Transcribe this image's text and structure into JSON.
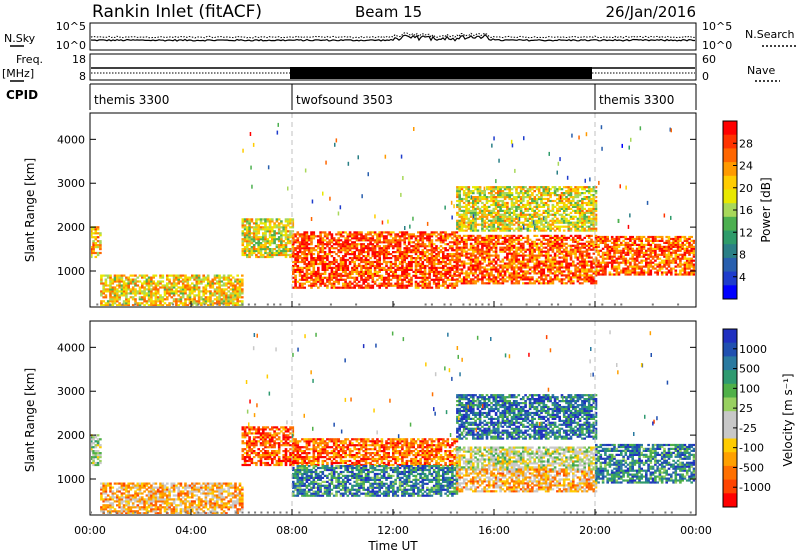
{
  "header": {
    "station": "Rankin Inlet (fitACF)",
    "beam": "Beam 15",
    "date": "26/Jan/2016"
  },
  "strips": {
    "nsky_label": "N.Sky",
    "nsearch_label": "N.Search",
    "left_ticks": [
      "10^5",
      "10^0"
    ],
    "right_ticks": [
      "10^5",
      "10^0"
    ],
    "freq_label": "Freq.",
    "freq_unit": "[MHz]",
    "freq_ticks": [
      "18",
      "8"
    ],
    "nave_label": "Nave",
    "nave_ticks": [
      "60",
      "0"
    ],
    "cpid_label": "CPID",
    "cpid_segments": [
      {
        "name": "themis 3300",
        "start_h": 0,
        "end_h": 8
      },
      {
        "name": "twofsound 3503",
        "start_h": 8,
        "end_h": 20
      },
      {
        "name": "themis 3300",
        "start_h": 20,
        "end_h": 24
      }
    ]
  },
  "chart_data": [
    {
      "type": "heatmap",
      "panel": "power",
      "ylabel": "Slant Range [km]",
      "ylim": [
        180,
        4600
      ],
      "xlim": [
        0,
        24
      ],
      "yticks": [
        1000,
        2000,
        3000,
        4000
      ],
      "colorbar_label": "Power [dB]",
      "colorbar_ticks": [
        "28",
        "24",
        "20",
        "16",
        "12",
        "8",
        "4"
      ],
      "colorbar_colors": [
        "#ff0000",
        "#ff3300",
        "#ff6600",
        "#ff9a00",
        "#ffcc00",
        "#e8e800",
        "#a8d85a",
        "#4cb050",
        "#2e9b6a",
        "#2a7f86",
        "#285fae",
        "#1e3ccc",
        "#0000ff"
      ],
      "regions": [
        {
          "t0": 0.0,
          "t1": 0.4,
          "r0": 1300,
          "r1": 2000,
          "level": 0.7
        },
        {
          "t0": 0.4,
          "t1": 6.0,
          "r0": 200,
          "r1": 900,
          "level": 0.65
        },
        {
          "t0": 6.0,
          "t1": 8.0,
          "r0": 1300,
          "r1": 2200,
          "level": 0.6
        },
        {
          "t0": 8.0,
          "t1": 14.5,
          "r0": 600,
          "r1": 1900,
          "level": 0.9
        },
        {
          "t0": 14.5,
          "t1": 20.0,
          "r0": 700,
          "r1": 1800,
          "level": 0.85
        },
        {
          "t0": 14.5,
          "t1": 20.0,
          "r0": 1900,
          "r1": 2900,
          "level": 0.6
        },
        {
          "t0": 20.0,
          "t1": 24.0,
          "r0": 900,
          "r1": 1800,
          "level": 0.85
        }
      ]
    },
    {
      "type": "heatmap",
      "panel": "velocity",
      "ylabel": "Slant Range [km]",
      "xlabel": "Time UT",
      "ylim": [
        180,
        4600
      ],
      "xlim": [
        0,
        24
      ],
      "yticks": [
        1000,
        2000,
        3000,
        4000
      ],
      "xtick_labels": [
        "00:00",
        "04:00",
        "08:00",
        "12:00",
        "16:00",
        "20:00",
        "00:00"
      ],
      "colorbar_label": "Velocity [m s⁻¹]",
      "colorbar_ticks": [
        "1000",
        "500",
        "100",
        "25",
        "-25",
        "-100",
        "-500",
        "-1000"
      ],
      "colorbar_colors": [
        "#2030c0",
        "#2050b0",
        "#2a7aa0",
        "#2f9a70",
        "#50b048",
        "#98d060",
        "#c8c8c8",
        "#c8c8c8",
        "#ffcc00",
        "#ffa000",
        "#ff7000",
        "#ff4400",
        "#ff0000"
      ],
      "regions": [
        {
          "t0": 0.0,
          "t1": 0.4,
          "r0": 1300,
          "r1": 2000,
          "level": 0.55
        },
        {
          "t0": 0.4,
          "t1": 6.0,
          "r0": 200,
          "r1": 900,
          "level": 0.3
        },
        {
          "t0": 6.0,
          "t1": 8.0,
          "r0": 1300,
          "r1": 2200,
          "level": 0.1
        },
        {
          "t0": 8.0,
          "t1": 14.5,
          "r0": 1300,
          "r1": 1900,
          "level": 0.15
        },
        {
          "t0": 8.0,
          "t1": 14.5,
          "r0": 600,
          "r1": 1300,
          "level": 0.8
        },
        {
          "t0": 14.5,
          "t1": 20.0,
          "r0": 1200,
          "r1": 1700,
          "level": 0.5
        },
        {
          "t0": 14.5,
          "t1": 20.0,
          "r0": 700,
          "r1": 1200,
          "level": 0.3
        },
        {
          "t0": 14.5,
          "t1": 20.0,
          "r0": 1900,
          "r1": 2900,
          "level": 0.85
        },
        {
          "t0": 20.0,
          "t1": 24.0,
          "r0": 900,
          "r1": 1800,
          "level": 0.8
        }
      ]
    }
  ]
}
